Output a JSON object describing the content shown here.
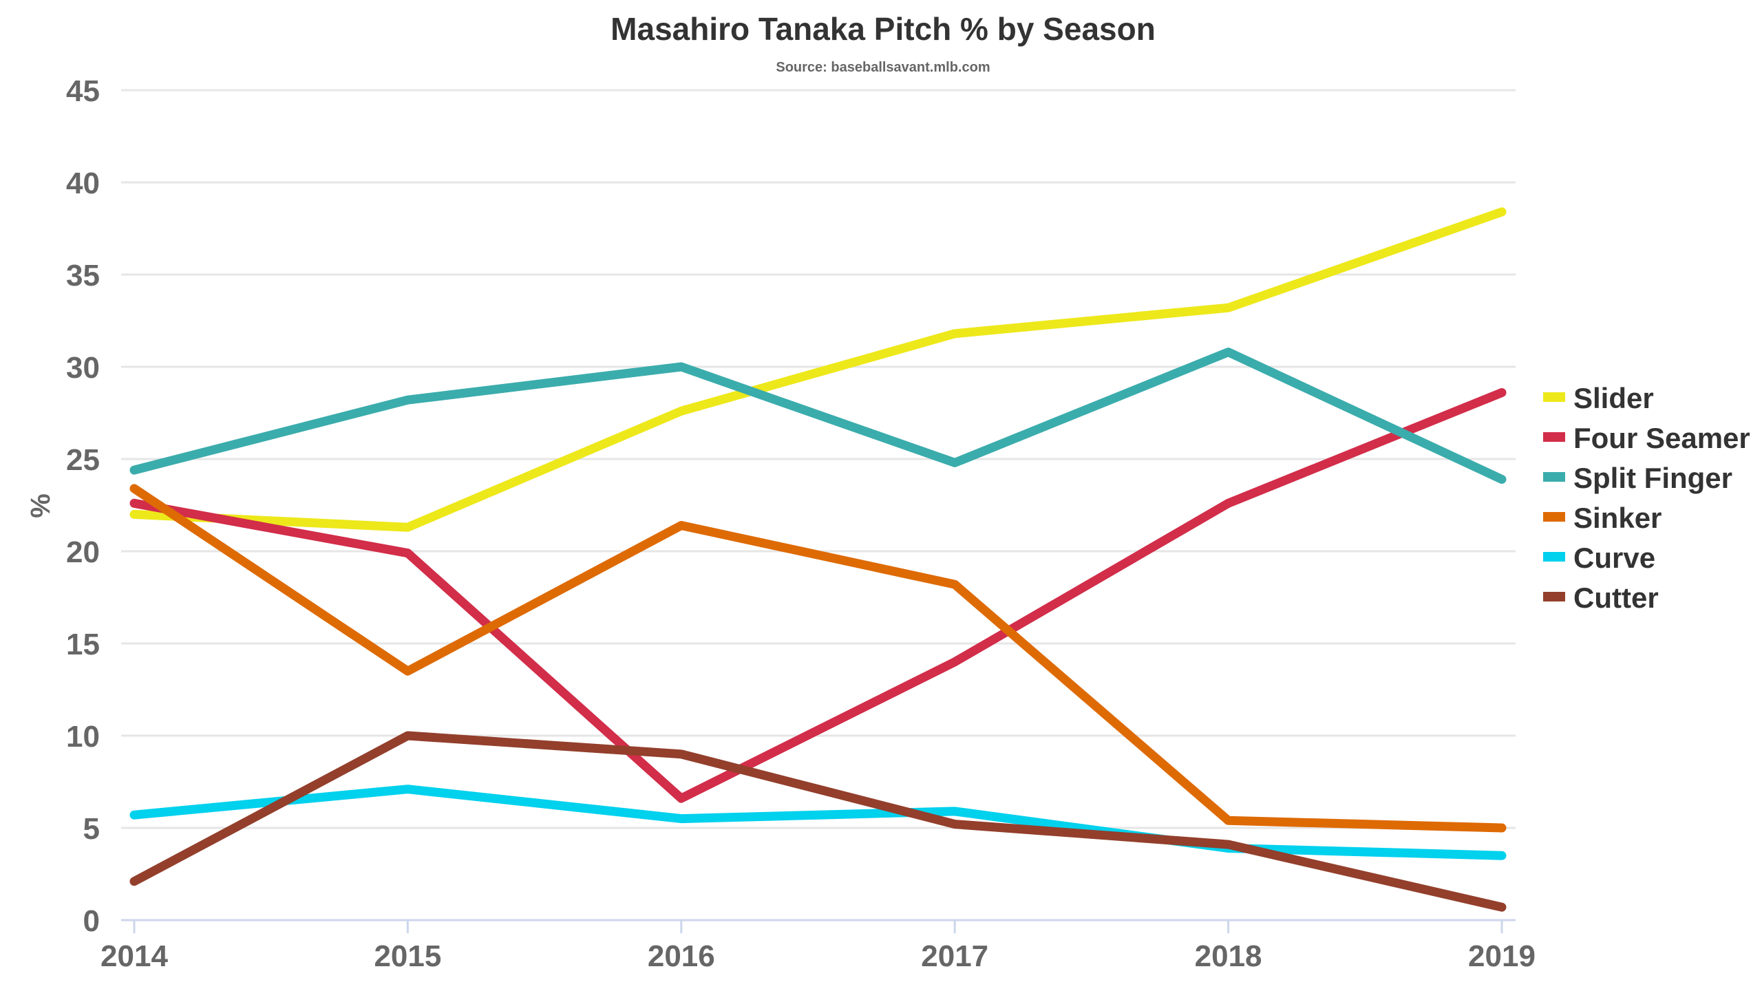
{
  "chart_data": {
    "type": "line",
    "title": "Masahiro Tanaka Pitch % by Season",
    "subtitle": "Source: baseballsavant.mlb.com",
    "xlabel": "",
    "ylabel": "%",
    "x": [
      "2014",
      "2015",
      "2016",
      "2017",
      "2018",
      "2019"
    ],
    "ylim": [
      0,
      45
    ],
    "yticks": [
      "0",
      "5",
      "10",
      "15",
      "20",
      "25",
      "30",
      "35",
      "40",
      "45"
    ],
    "grid": true,
    "legend_position": "right",
    "series": [
      {
        "name": "Slider",
        "color": "#ede81a",
        "values": [
          22.0,
          21.3,
          27.6,
          31.8,
          33.2,
          38.4
        ]
      },
      {
        "name": "Four Seamer",
        "color": "#d22d49",
        "values": [
          22.6,
          19.9,
          6.6,
          14.0,
          22.6,
          28.6
        ]
      },
      {
        "name": "Split Finger",
        "color": "#3bacac",
        "values": [
          24.4,
          28.2,
          30.0,
          24.8,
          30.8,
          23.9
        ]
      },
      {
        "name": "Sinker",
        "color": "#de6a04",
        "values": [
          23.4,
          13.5,
          21.4,
          18.2,
          5.4,
          5.0
        ]
      },
      {
        "name": "Curve",
        "color": "#00d1ed",
        "values": [
          5.7,
          7.1,
          5.5,
          5.9,
          3.9,
          3.5
        ]
      },
      {
        "name": "Cutter",
        "color": "#933f2c",
        "values": [
          2.1,
          10.0,
          9.0,
          5.2,
          4.1,
          0.7
        ]
      }
    ]
  }
}
